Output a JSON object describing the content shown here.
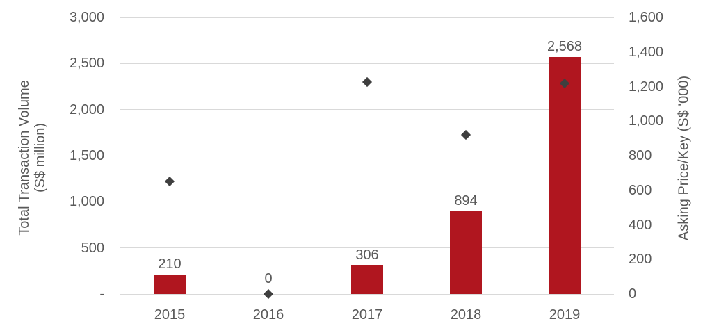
{
  "chart_data": {
    "type": "combo-bar-scatter",
    "title": "",
    "categories": [
      "2015",
      "2016",
      "2017",
      "2018",
      "2019"
    ],
    "series": [
      {
        "name": "Total Transaction Volume (S$ million)",
        "type": "bar",
        "axis": "left",
        "values": [
          210,
          0,
          306,
          894,
          2568
        ],
        "data_labels": [
          "210",
          "0",
          "306",
          "894",
          "2,568"
        ]
      },
      {
        "name": "Asking Price/Key (S$ '000)",
        "type": "scatter",
        "axis": "right",
        "marker": "diamond",
        "values": [
          650,
          0,
          1225,
          920,
          1220
        ]
      }
    ],
    "left_axis": {
      "title_line1": "Total Transaction Volume",
      "title_line2": "(S$ million)",
      "min": 0,
      "max": 3000,
      "tick_labels": [
        "3,000",
        "2,500",
        "2,000",
        "1,500",
        "1,000",
        "500",
        "-"
      ]
    },
    "right_axis": {
      "title": "Asking Price/Key (S$ '000)",
      "min": 0,
      "max": 1600,
      "tick_labels": [
        "1,600",
        "1,400",
        "1,200",
        "1,000",
        "800",
        "600",
        "400",
        "200",
        "0"
      ]
    },
    "grid": true,
    "legend": "none",
    "colors": {
      "bar": "#b0161f",
      "marker": "#3f3f3f",
      "gridline": "#d9d9d9",
      "text": "#595959"
    }
  }
}
